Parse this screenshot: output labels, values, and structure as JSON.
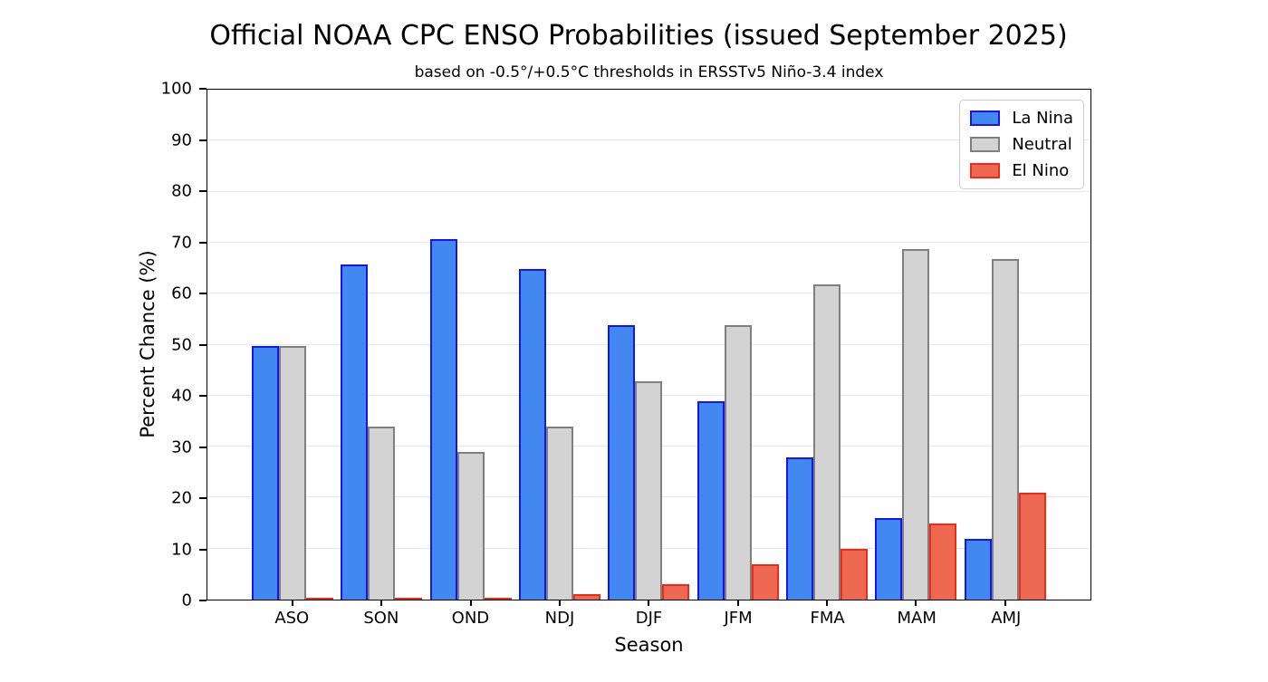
{
  "chart_data": {
    "type": "bar",
    "title": "Official NOAA CPC ENSO Probabilities (issued September 2025)",
    "subtitle": "based on -0.5°/+0.5°C thresholds in ERSSTv5 Niño-3.4 index",
    "xlabel": "Season",
    "ylabel": "Percent Chance (%)",
    "ylim": [
      0,
      100
    ],
    "yticks": [
      0,
      10,
      20,
      30,
      40,
      50,
      60,
      70,
      80,
      90,
      100
    ],
    "grid": true,
    "grid_color": "#e7e7e7",
    "legend_position": "upper right",
    "categories": [
      "ASO",
      "SON",
      "OND",
      "NDJ",
      "DJF",
      "JFM",
      "FMA",
      "MAM",
      "AMJ"
    ],
    "series": [
      {
        "name": "La Nina",
        "fill_color": "#4387f0",
        "edge_color": "#1515f0",
        "values": [
          50,
          66,
          71,
          65,
          54,
          39,
          28,
          16,
          12
        ]
      },
      {
        "name": "Neutral",
        "fill_color": "#d3d3d3",
        "edge_color": "#7f7f7f",
        "values": [
          50,
          34,
          29,
          34,
          43,
          54,
          62,
          69,
          67
        ]
      },
      {
        "name": "El Nino",
        "fill_color": "#ec6850",
        "edge_color": "#ee2a1a",
        "values": [
          0,
          0,
          0,
          1,
          3,
          7,
          10,
          15,
          21
        ]
      }
    ]
  }
}
